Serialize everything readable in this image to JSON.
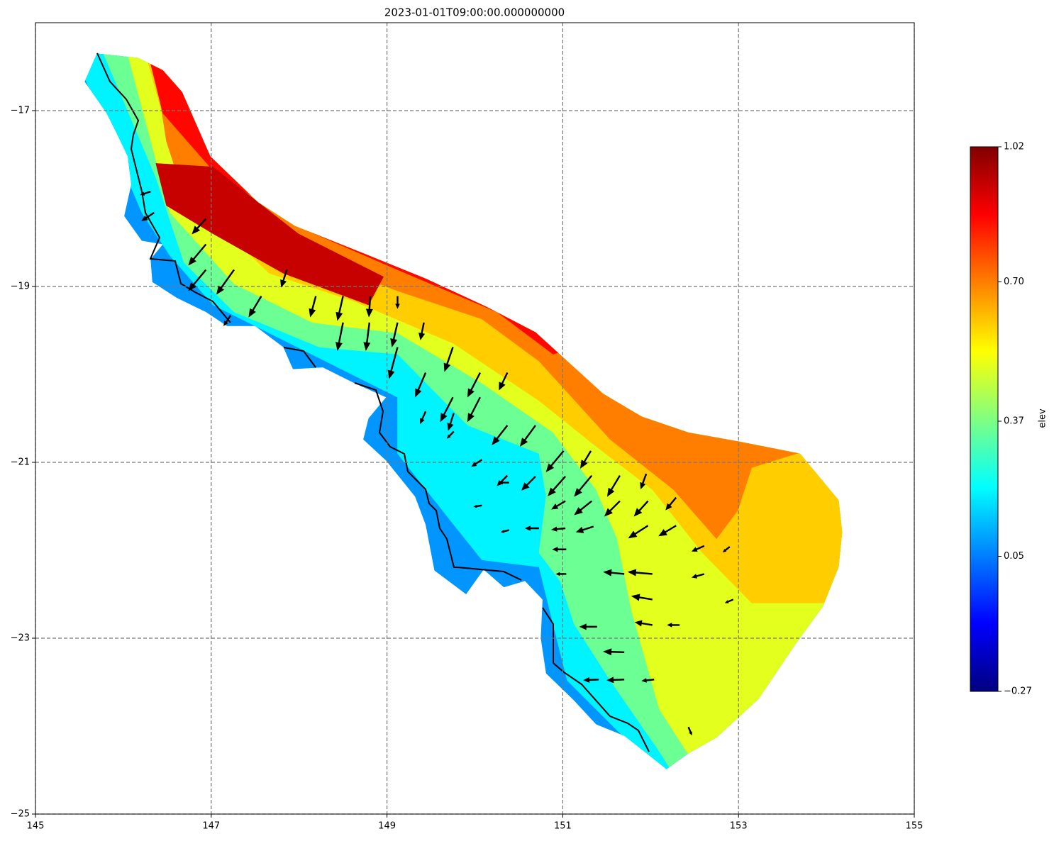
{
  "chart_data": {
    "type": "mesh",
    "title": "2023-01-01T09:00:00.000000000",
    "xlim": [
      145,
      155
    ],
    "ylim": [
      -25,
      -16
    ],
    "xticks": [
      145,
      147,
      149,
      151,
      153,
      155
    ],
    "yticks": [
      {
        "value": -25,
        "label": "−25"
      },
      {
        "value": -23,
        "label": "−23"
      },
      {
        "value": -21,
        "label": "−21"
      },
      {
        "value": -19,
        "label": "−19"
      },
      {
        "value": -17,
        "label": "−17"
      }
    ],
    "grid": true,
    "colormap": "jet",
    "colorbar": {
      "label": "elev",
      "lim": [
        -0.27,
        1.02
      ],
      "ticks": [
        {
          "value": -0.27,
          "label": "−0.27"
        },
        {
          "value": 0.05,
          "label": "0.05"
        },
        {
          "value": 0.37,
          "label": "0.37"
        },
        {
          "value": 0.7,
          "label": "0.70"
        },
        {
          "value": 1.02,
          "label": "1.02"
        }
      ]
    },
    "mesh": [
      {
        "elev": 0.08,
        "lon": [
          145.7,
          146.17,
          146.45,
          146.67,
          146.99,
          147.53,
          147.95,
          148.75,
          149.44,
          150.13,
          150.69,
          151.46,
          151.9,
          152.43,
          152.99,
          153.7,
          154.14,
          154.18,
          154.14,
          153.96,
          153.64,
          153.23,
          152.75,
          152.43,
          152.18,
          151.98,
          151.7,
          151.38,
          151.12,
          150.81,
          150.75,
          150.77,
          150.57,
          150.33,
          150.1,
          149.9,
          149.54,
          149.44,
          149.32,
          148.99,
          148.73,
          148.79,
          148.99,
          148.63,
          148.27,
          147.93,
          147.82,
          147.5,
          147.18,
          146.94,
          146.61,
          146.33,
          146.31,
          146.45,
          146.21,
          146.01,
          146.09,
          146.05,
          145.93,
          145.81,
          145.56
        ],
        "lat": [
          -16.35,
          -16.4,
          -16.54,
          -16.79,
          -17.52,
          -18.04,
          -18.31,
          -18.63,
          -18.91,
          -19.23,
          -19.52,
          -20.22,
          -20.48,
          -20.66,
          -20.76,
          -20.9,
          -21.43,
          -21.79,
          -22.19,
          -22.64,
          -23.08,
          -23.69,
          -24.13,
          -24.31,
          -24.49,
          -24.33,
          -24.11,
          -23.98,
          -23.7,
          -23.4,
          -23.0,
          -22.56,
          -22.35,
          -22.42,
          -22.22,
          -22.5,
          -22.23,
          -21.71,
          -21.39,
          -20.98,
          -20.74,
          -20.5,
          -20.26,
          -20.1,
          -19.92,
          -19.94,
          -19.69,
          -19.45,
          -19.45,
          -19.29,
          -19.13,
          -18.95,
          -18.69,
          -18.52,
          -18.48,
          -18.2,
          -17.84,
          -17.52,
          -17.27,
          -17.03,
          -16.67
        ]
      },
      {
        "elev": 0.2,
        "lon": [
          145.32,
          146.21,
          146.53,
          147.02,
          149.12,
          149.12,
          149.76,
          150.08,
          150.73,
          150.89,
          151.05,
          151.7,
          152.34,
          156,
          156,
          145.32
        ],
        "lat": [
          -16.06,
          -18.16,
          -18.65,
          -19.21,
          -20.26,
          -20.9,
          -21.71,
          -22.11,
          -22.19,
          -22.84,
          -23.48,
          -24.13,
          -24.77,
          -24.77,
          -15.5,
          -15.5
        ]
      },
      {
        "elev": 0.35,
        "lon": [
          145.65,
          146.37,
          146.69,
          147.26,
          148.23,
          149.12,
          149.92,
          150.73,
          150.81,
          150.73,
          150.97,
          151.13,
          151.54,
          152.1,
          152.51,
          156,
          156,
          145.65
        ],
        "lat": [
          -16.06,
          -17.76,
          -18.73,
          -19.29,
          -19.69,
          -19.77,
          -20.58,
          -20.9,
          -21.39,
          -22.03,
          -22.35,
          -22.84,
          -23.48,
          -24.29,
          -24.94,
          -24.94,
          -15.5,
          -15.5
        ]
      },
      {
        "elev": 0.5,
        "lon": [
          145.97,
          146.53,
          147.26,
          148.15,
          149.12,
          150.08,
          150.89,
          151.38,
          151.62,
          151.78,
          152.1,
          152.83,
          156,
          156,
          145.97
        ],
        "lat": [
          -16.06,
          -18.16,
          -18.97,
          -19.41,
          -19.53,
          -20.1,
          -20.66,
          -21.31,
          -21.87,
          -22.68,
          -23.81,
          -24.94,
          -24.94,
          -15.5,
          -15.5
        ]
      },
      {
        "elev": 0.6,
        "lon": [
          146.17,
          146.69,
          147.66,
          148.63,
          149.76,
          150.73,
          151.38,
          152.02,
          152.59,
          153.15,
          154.69,
          156,
          156,
          146.17
        ],
        "lat": [
          -16.06,
          -17.92,
          -18.85,
          -19.17,
          -19.65,
          -20.3,
          -20.82,
          -21.31,
          -22.03,
          -22.6,
          -22.6,
          -22.6,
          -15.5,
          -15.5
        ]
      },
      {
        "elev": 0.7,
        "lon": [
          146.29,
          146.49,
          146.78,
          147.82,
          149.12,
          150.08,
          150.73,
          151.54,
          152.26,
          152.75,
          152.99,
          153.15,
          154.69,
          156,
          156,
          146.29
        ],
        "lat": [
          -16.06,
          -17.35,
          -18.24,
          -18.56,
          -19.05,
          -19.37,
          -19.85,
          -20.74,
          -21.31,
          -21.87,
          -21.55,
          -21.06,
          -20.58,
          -20.58,
          -15.5,
          -15.5
        ]
      },
      {
        "elev": 0.85,
        "lon": [
          146.21,
          146.45,
          147.02,
          147.99,
          149.12,
          150.25,
          150.89,
          151.46,
          152.26,
          156,
          156,
          146.21
        ],
        "lat": [
          -16.06,
          -17.03,
          -17.68,
          -18.32,
          -18.81,
          -19.29,
          -19.77,
          -19.61,
          -18.16,
          -18.16,
          -15.5,
          -15.5
        ]
      },
      {
        "elev": 0.93,
        "lon": [
          146.37,
          147.02,
          147.99,
          148.96,
          148.79,
          147.82,
          147.02,
          146.49
        ],
        "lat": [
          -17.6,
          -17.64,
          -18.4,
          -18.89,
          -19.21,
          -18.85,
          -18.4,
          -18.08
        ]
      }
    ],
    "quiver": {
      "lon": [
        146.94,
        146.94,
        146.94,
        147.26,
        147.57,
        147.86,
        148.19,
        148.5,
        148.81,
        149.12,
        148.5,
        148.8,
        149.12,
        149.42,
        149.12,
        149.75,
        150.06,
        150.37,
        149.44,
        149.75,
        150.06,
        150.37,
        150.69,
        151.01,
        151.32,
        151.33,
        151.65,
        151.95,
        151.03,
        150.69,
        150.37,
        151.65,
        151.97,
        152.29,
        151.03,
        151.33,
        152.29,
        151.97,
        151.35,
        151.03,
        150.73,
        152.61,
        151.7,
        152.02,
        152.02,
        152.02,
        151.7,
        151.39,
        151.04,
        151.04,
        151.7,
        151.41,
        152.33,
        152.61,
        152.9,
        152.94,
        152.04,
        152.43,
        149.76,
        149.44,
        149.76,
        150.08,
        150.39,
        150.08,
        150.39,
        147.22,
        146.35,
        146.31
      ],
      "lat": [
        -18.23,
        -18.52,
        -18.81,
        -18.81,
        -19.11,
        -18.81,
        -19.11,
        -19.11,
        -19.11,
        -19.11,
        -19.41,
        -19.41,
        -19.41,
        -19.41,
        -19.69,
        -19.69,
        -19.98,
        -19.98,
        -19.98,
        -20.26,
        -20.26,
        -20.58,
        -20.58,
        -20.87,
        -20.87,
        -21.15,
        -21.15,
        -21.13,
        -21.16,
        -21.16,
        -21.15,
        -21.44,
        -21.44,
        -21.4,
        -21.44,
        -21.44,
        -21.72,
        -21.72,
        -21.73,
        -21.75,
        -21.75,
        -21.95,
        -22.27,
        -22.27,
        -22.56,
        -22.85,
        -23.16,
        -22.87,
        -22.27,
        -21.99,
        -23.47,
        -23.47,
        -22.85,
        -22.27,
        -21.96,
        -22.56,
        -23.47,
        -24.01,
        -20.44,
        -20.42,
        -20.65,
        -20.97,
        -21.23,
        -21.49,
        -21.77,
        -19.33,
        -18.16,
        -17.92
      ],
      "u": [
        -0.2,
        -0.25,
        -0.25,
        -0.25,
        -0.18,
        -0.08,
        -0.08,
        -0.08,
        -0.02,
        0,
        -0.08,
        -0.05,
        -0.08,
        -0.05,
        -0.12,
        -0.12,
        -0.18,
        -0.12,
        -0.15,
        -0.18,
        -0.18,
        -0.22,
        -0.22,
        -0.25,
        -0.15,
        -0.25,
        -0.18,
        -0.08,
        -0.25,
        -0.2,
        -0.15,
        -0.22,
        -0.2,
        -0.15,
        -0.2,
        -0.25,
        -0.25,
        -0.28,
        -0.25,
        -0.2,
        -0.2,
        -0.18,
        -0.3,
        -0.35,
        -0.3,
        -0.25,
        -0.3,
        -0.25,
        -0.15,
        -0.2,
        -0.25,
        -0.22,
        -0.18,
        -0.18,
        -0.1,
        -0.12,
        -0.18,
        0.05,
        -0.08,
        -0.08,
        -0.1,
        -0.15,
        -0.15,
        -0.12,
        -0.12,
        -0.1,
        -0.18,
        -0.15
      ],
      "v": [
        -0.22,
        -0.3,
        -0.3,
        -0.35,
        -0.3,
        -0.25,
        -0.3,
        -0.35,
        -0.3,
        -0.18,
        -0.4,
        -0.4,
        -0.35,
        -0.25,
        -0.45,
        -0.35,
        -0.35,
        -0.25,
        -0.35,
        -0.35,
        -0.35,
        -0.28,
        -0.3,
        -0.3,
        -0.25,
        -0.3,
        -0.3,
        -0.22,
        -0.28,
        -0.2,
        -0.15,
        -0.22,
        -0.22,
        -0.18,
        -0.12,
        -0.2,
        -0.15,
        -0.18,
        -0.08,
        -0.02,
        0,
        -0.08,
        0.03,
        0.03,
        0.05,
        0.04,
        0.01,
        0,
        0,
        0,
        -0.01,
        -0.01,
        0,
        -0.05,
        -0.08,
        -0.05,
        -0.02,
        -0.12,
        -0.25,
        -0.18,
        -0.1,
        -0.1,
        0,
        -0.02,
        -0.03,
        -0.15,
        -0.12,
        -0.05
      ]
    }
  }
}
